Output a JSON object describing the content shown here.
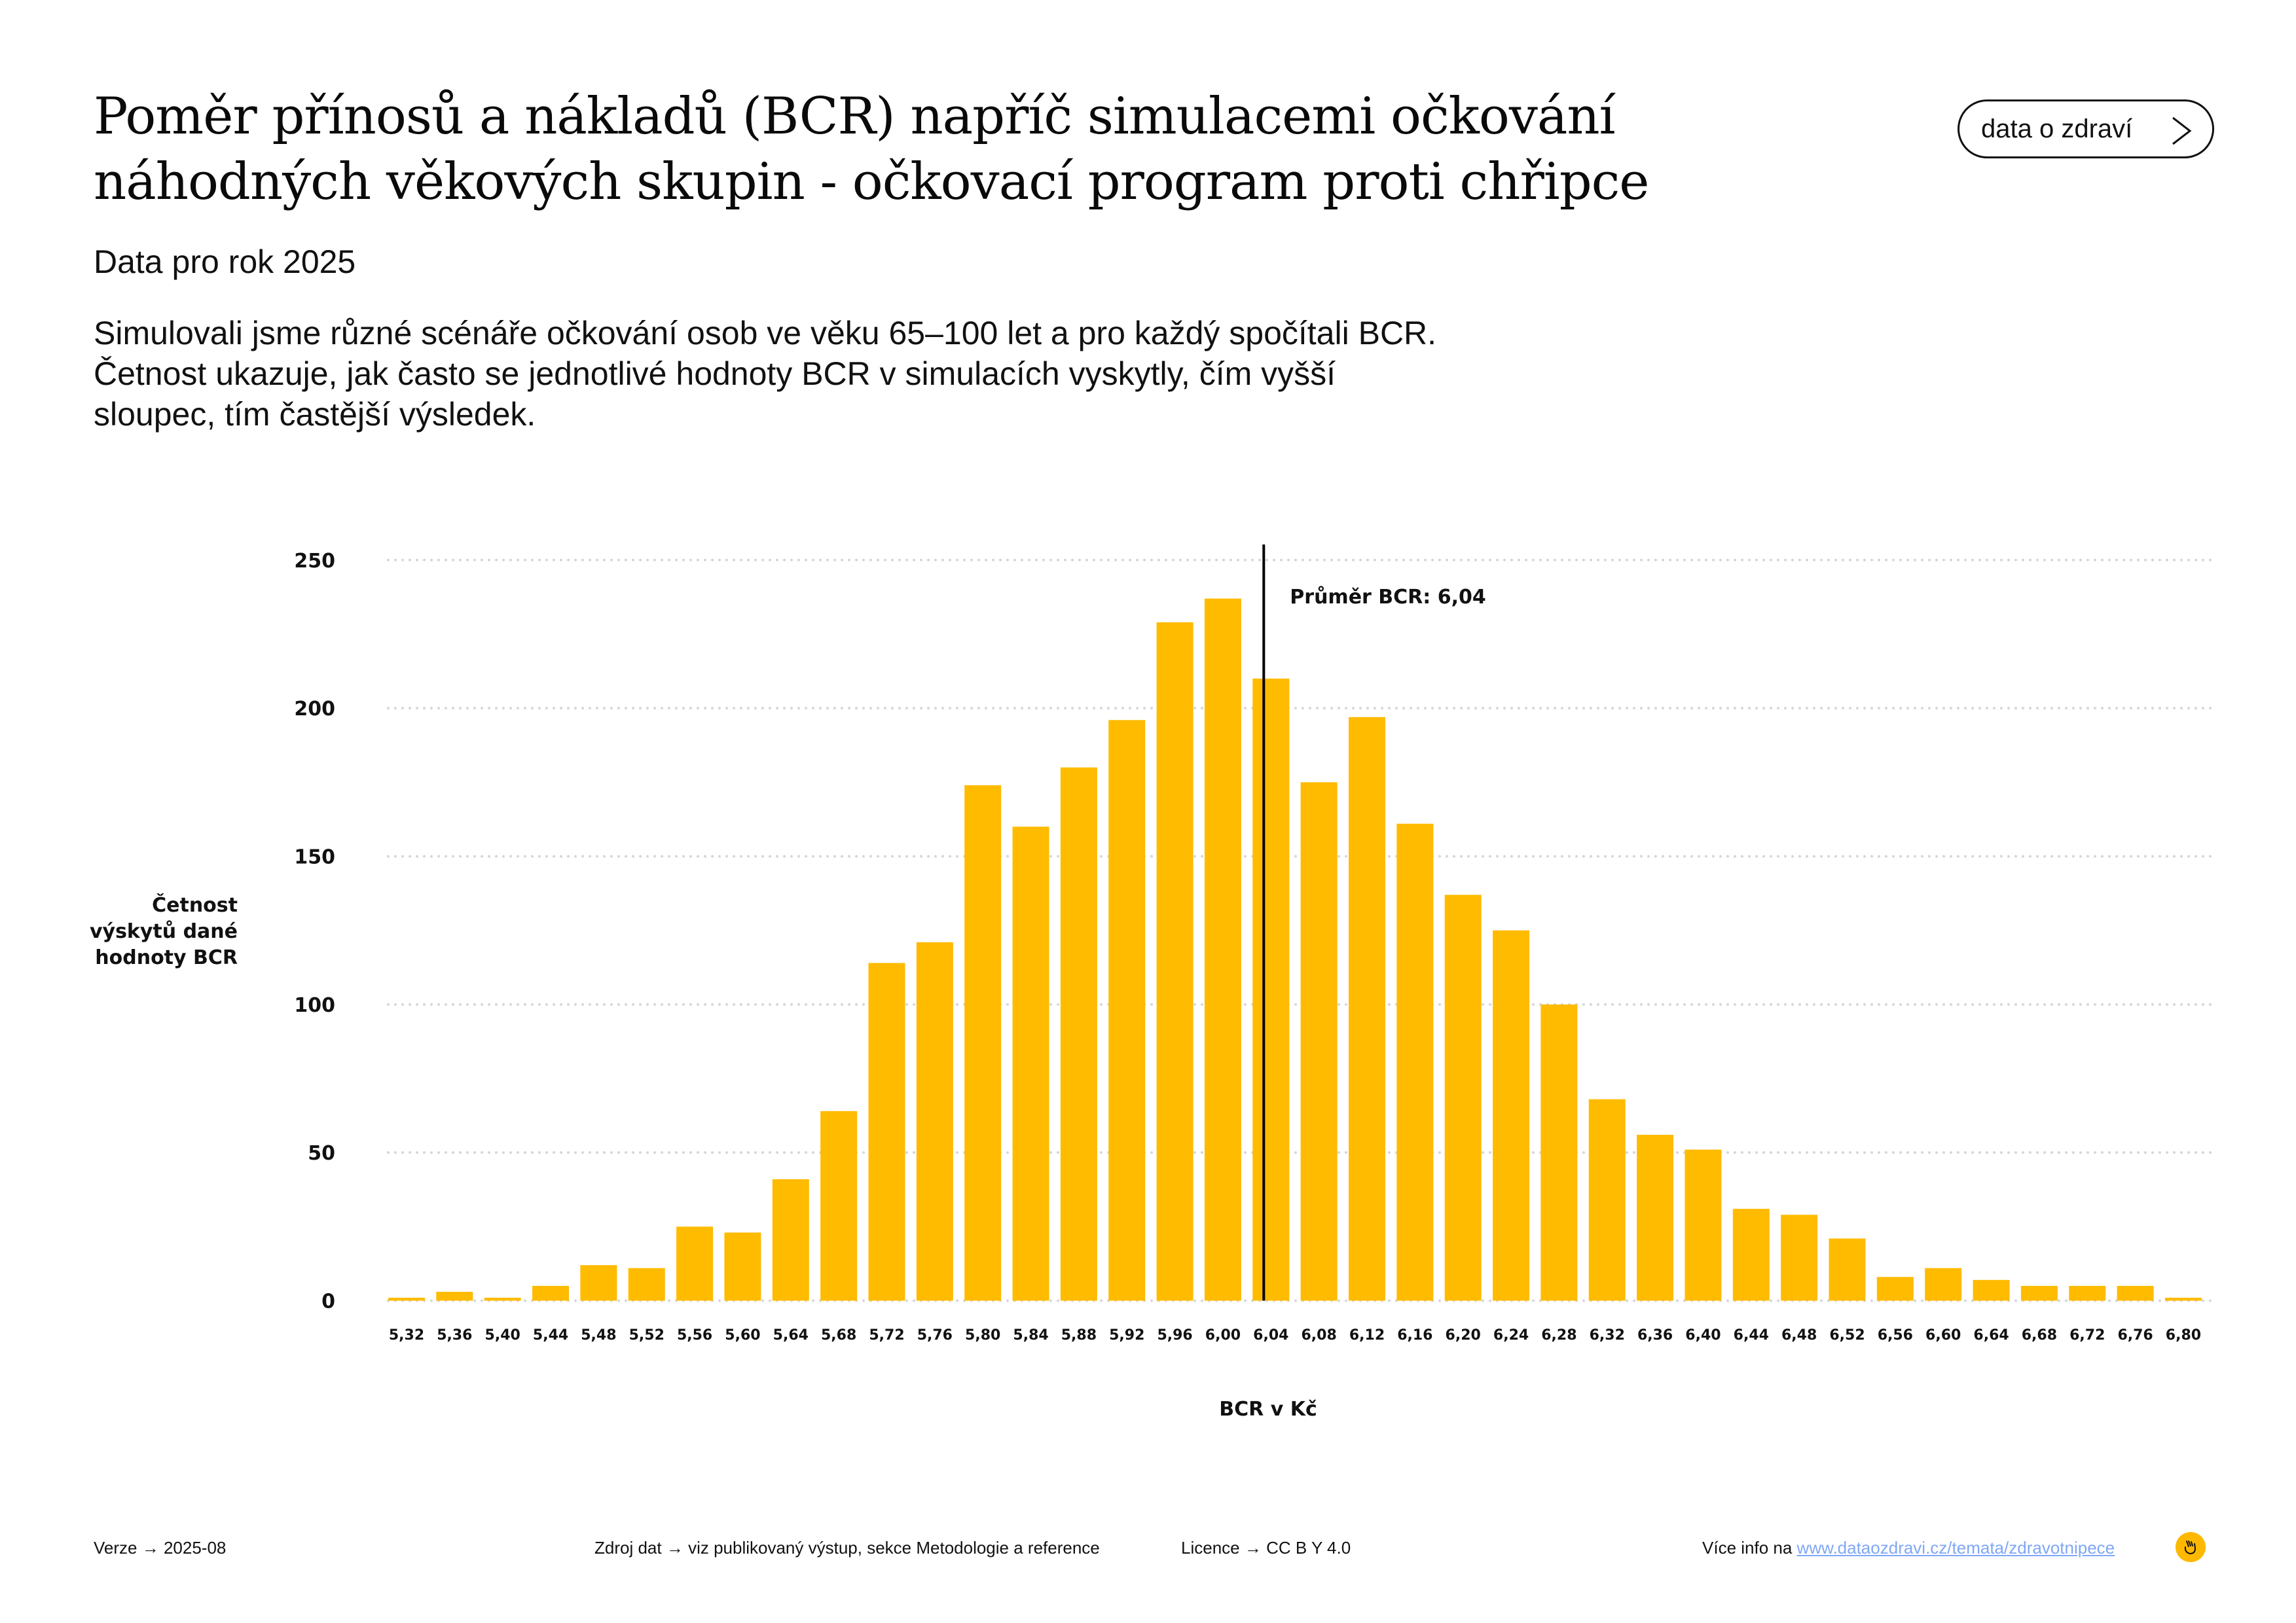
{
  "header": {
    "title_line1": "Poměr přínosů a nákladů (BCR) napříč simulacemi očkování",
    "title_line2": "náhodných věkových skupin - očkovací program proti chřipce",
    "subtitle": "Data pro rok 2025",
    "description_lines": [
      "Simulovali jsme různé scénáře očkování osob ve věku 65–100 let a pro každý spočítali BCR.",
      "Četnost ukazuje, jak často se jednotlivé hodnoty BCR v simulacích vyskytly, čím vyšší",
      "sloupec, tím častější výsledek."
    ],
    "nav_button": {
      "label": "data o zdraví",
      "icon": "chevron-right-icon"
    }
  },
  "chart_data": {
    "type": "bar",
    "title": "Poměr přínosů a nákladů (BCR) napříč simulacemi očkování náhodných věkových skupin - očkovací program proti chřipce",
    "xlabel": "BCR v Kč",
    "ylabel_lines": [
      "Četnost",
      "výskytů dané",
      "hodnoty BCR"
    ],
    "ylim": [
      0,
      250
    ],
    "yticks": [
      0,
      50,
      100,
      150,
      200,
      250
    ],
    "grid": "horizontal-dotted",
    "bar_color": "#FFBB00",
    "categories": [
      "5,32",
      "5,36",
      "5,40",
      "5,44",
      "5,48",
      "5,52",
      "5,56",
      "5,60",
      "5,64",
      "5,68",
      "5,72",
      "5,76",
      "5,80",
      "5,84",
      "5,88",
      "5,92",
      "5,96",
      "6,00",
      "6,04",
      "6,08",
      "6,12",
      "6,16",
      "6,20",
      "6,24",
      "6,28",
      "6,32",
      "6,36",
      "6,40",
      "6,44",
      "6,48",
      "6,52",
      "6,56",
      "6,60",
      "6,64",
      "6,68",
      "6,72",
      "6,76",
      "6,80"
    ],
    "values": [
      1,
      3,
      1,
      5,
      12,
      11,
      25,
      23,
      41,
      64,
      114,
      121,
      174,
      160,
      180,
      196,
      229,
      237,
      210,
      175,
      197,
      161,
      137,
      125,
      100,
      68,
      56,
      51,
      31,
      29,
      21,
      8,
      11,
      7,
      5,
      5,
      5,
      1
    ],
    "annotations": [
      {
        "type": "vline",
        "x_value": 6.04,
        "label": "Průměr BCR: 6,04",
        "color": "#000000"
      }
    ]
  },
  "footer": {
    "version_label": "Verze",
    "version_value": "2025-08",
    "source_label": "Zdroj dat",
    "source_value": "viz publikovaný výstup, sekce Metodologie a reference",
    "license_label": "Licence",
    "license_value": "CC B Y 4.0",
    "more_info_label": "Více info na",
    "more_info_link": "www.dataozdravi.cz/temata/zdravotnipece",
    "arrow": "→",
    "logo_icon": "hand-logo-icon",
    "link_color": "#7FA7F5",
    "logo_color": "#FFB800"
  }
}
